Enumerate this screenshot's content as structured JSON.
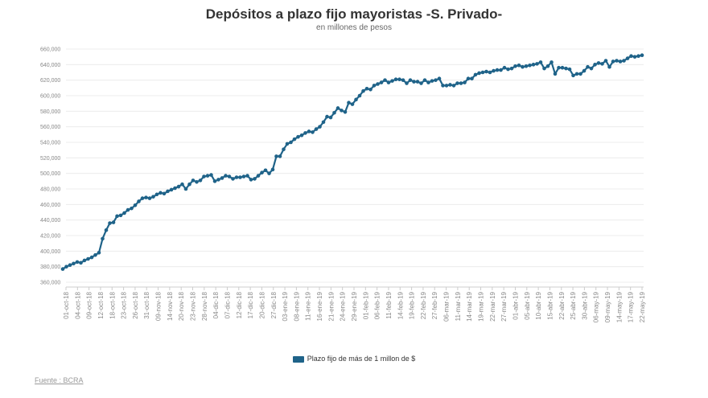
{
  "chart_data": {
    "type": "line",
    "title": "Depósitos a plazo fijo mayoristas -S. Privado-",
    "subtitle": "en millones de pesos",
    "xlabel": "",
    "ylabel": "",
    "ylim": [
      360000,
      660000
    ],
    "yticks": [
      "360,000",
      "380,000",
      "400,000",
      "420,000",
      "440,000",
      "460,000",
      "480,000",
      "500,000",
      "520,000",
      "540,000",
      "560,000",
      "580,000",
      "600,000",
      "620,000",
      "640,000",
      "660,000"
    ],
    "xtick_labels": [
      "01-oct-18",
      "04-oct-18",
      "09-oct-18",
      "12-oct-18",
      "18-oct-18",
      "23-oct-18",
      "26-oct-18",
      "31-oct-18",
      "09-nov-18",
      "14-nov-18",
      "20-nov-18",
      "23-nov-18",
      "28-nov-18",
      "04-dic-18",
      "07-dic-18",
      "12-dic-18",
      "17-dic-18",
      "20-dic-18",
      "27-dic-18",
      "03-ene-19",
      "08-ene-19",
      "11-ene-19",
      "16-ene-19",
      "21-ene-19",
      "24-ene-19",
      "29-ene-19",
      "01-feb-19",
      "06-feb-19",
      "11-feb-19",
      "14-feb-19",
      "19-feb-19",
      "22-feb-19",
      "27-feb-19",
      "06-mar-19",
      "11-mar-19",
      "14-mar-19",
      "19-mar-19",
      "22-mar-19",
      "27-mar-19",
      "01-abr-19",
      "05-abr-19",
      "10-abr-19",
      "15-abr-19",
      "22-abr-19",
      "25-abr-19",
      "30-abr-19",
      "06-may-19",
      "09-may-19",
      "14-may-19",
      "17-may-19",
      "22-may-19"
    ],
    "grid": true,
    "legend_position": "bottom",
    "series": [
      {
        "name": "Plazo fijo de más de 1 millon de $",
        "color": "#1f6389",
        "values": [
          377000,
          380000,
          382000,
          384000,
          386000,
          385000,
          388000,
          390000,
          392000,
          395000,
          398000,
          416000,
          427000,
          436000,
          437000,
          445000,
          446000,
          449000,
          453000,
          455000,
          459000,
          464000,
          468000,
          469000,
          468000,
          470000,
          473000,
          475000,
          474000,
          477000,
          479000,
          481000,
          483000,
          486000,
          480000,
          486000,
          491000,
          489000,
          491000,
          496000,
          497000,
          498000,
          490000,
          492000,
          494000,
          497000,
          496000,
          493000,
          495000,
          495000,
          496000,
          497000,
          492000,
          493000,
          497000,
          501000,
          504000,
          500000,
          505000,
          522000,
          522000,
          531000,
          538000,
          540000,
          544000,
          547000,
          549000,
          552000,
          554000,
          553000,
          557000,
          560000,
          566000,
          573000,
          572000,
          578000,
          584000,
          581000,
          579000,
          591000,
          589000,
          595000,
          600000,
          606000,
          609000,
          608000,
          613000,
          615000,
          617000,
          620000,
          617000,
          619000,
          621000,
          621000,
          620000,
          616000,
          620000,
          618000,
          618000,
          616000,
          620000,
          617000,
          619000,
          620000,
          622000,
          613000,
          613000,
          614000,
          613000,
          616000,
          616000,
          617000,
          622000,
          622000,
          627000,
          629000,
          630000,
          631000,
          630000,
          632000,
          633000,
          633000,
          636000,
          634000,
          635000,
          638000,
          639000,
          637000,
          638000,
          639000,
          640000,
          641000,
          643000,
          635000,
          638000,
          643000,
          628000,
          636000,
          636000,
          635000,
          634000,
          626000,
          628000,
          628000,
          632000,
          637000,
          635000,
          640000,
          642000,
          641000,
          645000,
          637000,
          644000,
          645000,
          644000,
          645000,
          648000,
          651000,
          650000,
          651000,
          652000
        ]
      }
    ],
    "source": "Fuente : BCRA"
  }
}
